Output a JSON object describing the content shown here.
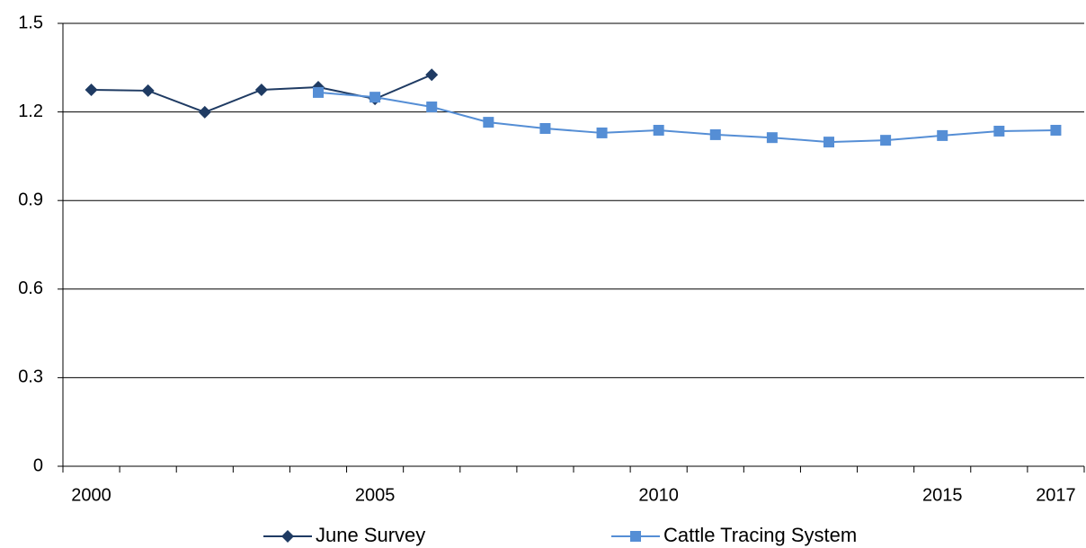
{
  "chart_data": {
    "type": "line",
    "categories": [
      "2000",
      null,
      null,
      null,
      null,
      "2005",
      null,
      null,
      null,
      null,
      "2010",
      null,
      null,
      null,
      null,
      "2015",
      null,
      "2017"
    ],
    "series": [
      {
        "name": "June Survey",
        "color": "#1f3b63",
        "marker": "diamond",
        "values": [
          1.275,
          1.272,
          1.199,
          1.275,
          1.284,
          1.244,
          1.326,
          null,
          null,
          null,
          null,
          null,
          null,
          null,
          null,
          null,
          null,
          null
        ]
      },
      {
        "name": "Cattle Tracing System",
        "color": "#558ed5",
        "marker": "square",
        "values": [
          null,
          null,
          null,
          null,
          1.266,
          1.25,
          1.217,
          1.165,
          1.144,
          1.129,
          1.138,
          1.123,
          1.113,
          1.098,
          1.104,
          1.12,
          1.135,
          1.138
        ]
      }
    ],
    "ylim": [
      0,
      1.5
    ],
    "yticks": [
      0,
      0.3,
      0.6,
      0.9,
      1.2,
      1.5
    ],
    "grid": true,
    "legend": "bottom"
  }
}
